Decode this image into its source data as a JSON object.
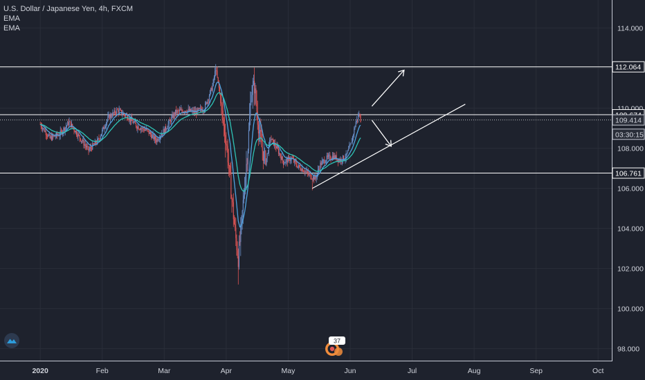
{
  "header": {
    "symbol_title": "U.S. Dollar / Japanese Yen, 4h, FXCM",
    "indicators": [
      "EMA",
      "EMA"
    ]
  },
  "colors": {
    "background": "#1e222d",
    "grid": "#2a2e39",
    "text": "#d1d4dc",
    "candle_up": "#6a8fc9",
    "candle_down": "#e05555",
    "ema_fast": "#2ec4b6",
    "ema_slow": "#4fa3e0",
    "drawing": "#ffffff",
    "axis_bg": "#1e222d",
    "logo": "#2d9cdb",
    "badge": "#f08c3c"
  },
  "icons": {
    "logo": "tradingview-logo-icon",
    "events": "dividend-event-icon"
  },
  "badge_text": "37",
  "chart_data": {
    "type": "line",
    "title": "U.S. Dollar / Japanese Yen, 4h, FXCM",
    "xlabel": "",
    "ylabel": "",
    "ylim": [
      97.4,
      115.4
    ],
    "x_ticks": [
      "2020",
      "Feb",
      "Mar",
      "Apr",
      "May",
      "Jun",
      "Jul",
      "Aug",
      "Sep",
      "Oct"
    ],
    "y_ticks": [
      "98.000",
      "100.000",
      "102.000",
      "104.000",
      "106.000",
      "108.000",
      "110.000",
      "112.000",
      "114.000"
    ],
    "price_labels": [
      {
        "label": "112.064",
        "value": 112.064,
        "style": "line"
      },
      {
        "label": "109.674",
        "value": 109.674,
        "style": "line"
      },
      {
        "label": "109.414",
        "value": 109.414,
        "style": "current"
      },
      {
        "label": "03:30:15",
        "value": 108.7,
        "style": "countdown"
      },
      {
        "label": "106.761",
        "value": 106.761,
        "style": "line"
      }
    ],
    "horizontal_lines": [
      112.064,
      109.674,
      106.761
    ],
    "current_price": 109.414,
    "price_path": [
      [
        0,
        109.2
      ],
      [
        6,
        108.5
      ],
      [
        12,
        108.7
      ],
      [
        18,
        109.3
      ],
      [
        24,
        108.6
      ],
      [
        30,
        107.9
      ],
      [
        36,
        108.4
      ],
      [
        42,
        109.5
      ],
      [
        48,
        109.9
      ],
      [
        54,
        109.6
      ],
      [
        60,
        109.1
      ],
      [
        66,
        108.9
      ],
      [
        72,
        108.4
      ],
      [
        78,
        109.0
      ],
      [
        84,
        109.8
      ],
      [
        90,
        109.9
      ],
      [
        96,
        109.8
      ],
      [
        102,
        110.0
      ],
      [
        107,
        111.1
      ],
      [
        109,
        112.0
      ],
      [
        111,
        111.0
      ],
      [
        113,
        109.7
      ],
      [
        116,
        108.0
      ],
      [
        119,
        105.5
      ],
      [
        121,
        103.8
      ],
      [
        123,
        102.5
      ],
      [
        125,
        104.2
      ],
      [
        127,
        106.3
      ],
      [
        129,
        108.1
      ],
      [
        131,
        110.8
      ],
      [
        133,
        111.1
      ],
      [
        135,
        109.5
      ],
      [
        137,
        108.2
      ],
      [
        140,
        107.3
      ],
      [
        143,
        108.5
      ],
      [
        147,
        108.0
      ],
      [
        151,
        107.3
      ],
      [
        156,
        107.5
      ],
      [
        160,
        107.1
      ],
      [
        164,
        106.9
      ],
      [
        168,
        106.6
      ],
      [
        171,
        106.5
      ],
      [
        174,
        107.2
      ],
      [
        178,
        107.5
      ],
      [
        182,
        107.6
      ],
      [
        186,
        107.4
      ],
      [
        190,
        107.6
      ],
      [
        193,
        108.2
      ],
      [
        196,
        109.3
      ],
      [
        198,
        109.7
      ],
      [
        199,
        109.4
      ]
    ],
    "extremes": [
      {
        "x": 109,
        "low": 111.6,
        "high": 112.2
      },
      {
        "x": 123,
        "low": 101.2,
        "high": 103.0
      },
      {
        "x": 133,
        "low": 110.4,
        "high": 111.8
      },
      {
        "x": 169,
        "low": 105.9,
        "high": 106.4
      }
    ],
    "trendline": {
      "x1": 169,
      "y1": 106.0,
      "x2": 264,
      "y2": 110.2
    },
    "arrows": [
      {
        "x1": 206,
        "y1": 110.1,
        "x2": 226,
        "y2": 111.9
      },
      {
        "x1": 206,
        "y1": 109.4,
        "x2": 218,
        "y2": 108.1
      }
    ],
    "x_domain": [
      -25,
      355
    ]
  }
}
